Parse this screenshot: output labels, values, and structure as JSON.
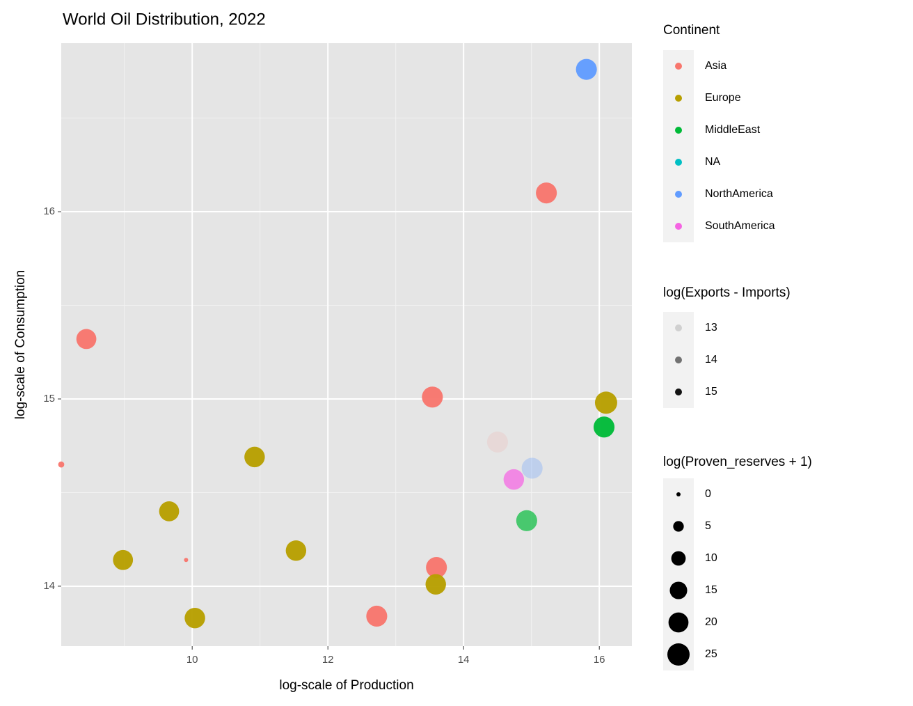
{
  "chart_data": {
    "type": "scatter",
    "title": "World Oil Distribution, 2022",
    "x_label": "log-scale of Production",
    "y_label": "log-scale of Consumption",
    "xlim": [
      8.07,
      16.48
    ],
    "ylim": [
      13.68,
      16.9
    ],
    "xticks": [
      10,
      12,
      14,
      16
    ],
    "yticks": [
      14,
      15,
      16
    ],
    "grid": true,
    "color_legend": {
      "title": "Continent",
      "categories": [
        "Asia",
        "Europe",
        "MiddleEast",
        "NA",
        "NorthAmerica",
        "SouthAmerica"
      ],
      "colors": [
        "#F8766D",
        "#B79F00",
        "#00BA38",
        "#00BFC4",
        "#619CFF",
        "#F564E3"
      ]
    },
    "alpha_legend": {
      "title": "log(Exports - Imports)",
      "values": [
        13,
        14,
        15
      ],
      "lim": [
        12.9,
        15.2
      ]
    },
    "size_legend": {
      "title": "log(Proven_reserves + 1)",
      "values": [
        0,
        5,
        10,
        15,
        20,
        25
      ],
      "lim": [
        0,
        25
      ]
    },
    "points": {
      "x": [
        15.81,
        15.22,
        8.44,
        13.54,
        16.1,
        16.07,
        14.5,
        10.92,
        8.07,
        15.01,
        14.74,
        9.66,
        14.93,
        8.98,
        9.91,
        11.53,
        13.6,
        13.59,
        12.72,
        10.04
      ],
      "y": [
        16.76,
        16.1,
        15.32,
        15.01,
        14.98,
        14.85,
        14.77,
        14.69,
        14.65,
        14.63,
        14.57,
        14.4,
        14.35,
        14.14,
        14.14,
        14.19,
        14.1,
        14.01,
        13.84,
        13.83
      ],
      "continent": [
        "NorthAmerica",
        "Asia",
        "Asia",
        "Asia",
        "Europe",
        "MiddleEast",
        "Asia",
        "Europe",
        "Asia",
        "NorthAmerica",
        "SouthAmerica",
        "Europe",
        "MiddleEast",
        "Europe",
        "Asia",
        "Europe",
        "Asia",
        "Europe",
        "Asia",
        "Europe"
      ],
      "exports": [
        15.1,
        15.1,
        15.1,
        15.1,
        15.1,
        15.1,
        12.95,
        15.1,
        15.1,
        13.4,
        14.5,
        15.1,
        14.4,
        15.1,
        15.1,
        15.1,
        15.1,
        15.1,
        15.1,
        15.1
      ],
      "reserves": [
        22,
        22,
        20,
        22,
        25,
        22,
        22,
        21,
        1,
        22,
        21,
        20,
        22,
        20,
        0,
        21,
        22,
        21,
        22,
        21
      ]
    }
  }
}
